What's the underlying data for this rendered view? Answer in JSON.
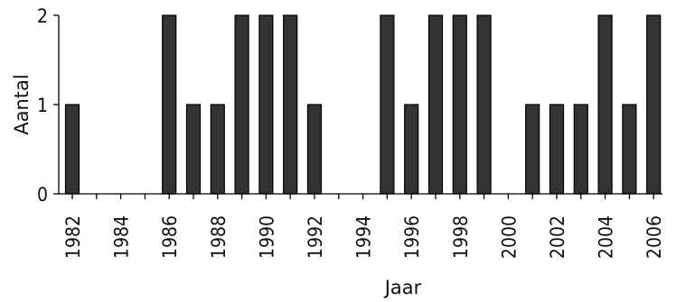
{
  "chart_data": {
    "type": "bar",
    "title": "",
    "xlabel": "Jaar",
    "ylabel": "Aantal",
    "ylim": [
      0,
      2
    ],
    "yticks": [
      0,
      1,
      2
    ],
    "xlim": [
      1982,
      2006
    ],
    "xtick_labels": [
      "1982",
      "1984",
      "1986",
      "1988",
      "1990",
      "1992",
      "1994",
      "1996",
      "1998",
      "2000",
      "2002",
      "2004",
      "2006"
    ],
    "categories": [
      1982,
      1983,
      1984,
      1985,
      1986,
      1987,
      1988,
      1989,
      1990,
      1991,
      1992,
      1993,
      1994,
      1995,
      1996,
      1997,
      1998,
      1999,
      2000,
      2001,
      2002,
      2003,
      2004,
      2005,
      2006
    ],
    "values": [
      1,
      0,
      0,
      0,
      2,
      1,
      1,
      2,
      2,
      2,
      1,
      0,
      0,
      2,
      1,
      2,
      2,
      2,
      0,
      1,
      1,
      1,
      2,
      1,
      2
    ],
    "bar_color": "#333333",
    "grid": false,
    "legend": "none"
  }
}
